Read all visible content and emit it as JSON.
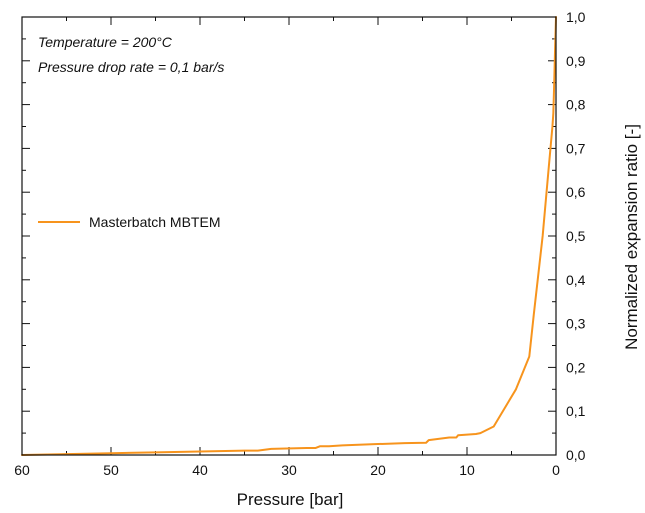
{
  "chart_data": {
    "type": "line",
    "title": "",
    "xlabel": "Pressure [bar]",
    "ylabel": "Normalized expansion ratio [-]",
    "xlim": [
      60,
      0
    ],
    "ylim": [
      0.0,
      1.0
    ],
    "x_reversed": true,
    "y_axis_side": "right",
    "grid": false,
    "legend_placement": "left-middle",
    "x_ticks": [
      {
        "value": 60,
        "label": "60"
      },
      {
        "value": 50,
        "label": "50"
      },
      {
        "value": 40,
        "label": "40"
      },
      {
        "value": 30,
        "label": "30"
      },
      {
        "value": 20,
        "label": "20"
      },
      {
        "value": 10,
        "label": "10"
      },
      {
        "value": 0,
        "label": "0"
      }
    ],
    "y_ticks": [
      {
        "value": 0.0,
        "label": "0,0"
      },
      {
        "value": 0.1,
        "label": "0,1"
      },
      {
        "value": 0.2,
        "label": "0,2"
      },
      {
        "value": 0.3,
        "label": "0,3"
      },
      {
        "value": 0.4,
        "label": "0,4"
      },
      {
        "value": 0.5,
        "label": "0,5"
      },
      {
        "value": 0.6,
        "label": "0,6"
      },
      {
        "value": 0.7,
        "label": "0,7"
      },
      {
        "value": 0.8,
        "label": "0,8"
      },
      {
        "value": 0.9,
        "label": "0,9"
      },
      {
        "value": 1.0,
        "label": "1,0"
      }
    ],
    "annotations": [
      "Temperature = 200°C",
      "Pressure drop rate = 0,1 bar/s"
    ],
    "series": [
      {
        "name": "Masterbatch MBTEM",
        "color": "#f7941d",
        "points": [
          [
            60,
            0.0
          ],
          [
            55,
            0.002
          ],
          [
            50,
            0.004
          ],
          [
            45,
            0.006
          ],
          [
            40,
            0.008
          ],
          [
            35,
            0.01
          ],
          [
            33.5,
            0.01
          ],
          [
            32,
            0.014
          ],
          [
            28,
            0.016
          ],
          [
            27,
            0.016
          ],
          [
            26.5,
            0.02
          ],
          [
            25.5,
            0.02
          ],
          [
            24,
            0.022
          ],
          [
            20,
            0.025
          ],
          [
            17,
            0.027
          ],
          [
            14.6,
            0.028
          ],
          [
            14.3,
            0.034
          ],
          [
            12,
            0.04
          ],
          [
            11.2,
            0.04
          ],
          [
            11,
            0.045
          ],
          [
            9,
            0.048
          ],
          [
            8.5,
            0.05
          ],
          [
            7,
            0.065
          ],
          [
            4.5,
            0.15
          ],
          [
            3,
            0.225
          ],
          [
            2.5,
            0.32
          ],
          [
            1.5,
            0.5
          ],
          [
            0.8,
            0.66
          ],
          [
            0.4,
            0.75
          ],
          [
            0.3,
            0.78
          ],
          [
            0.2,
            0.85
          ],
          [
            0.1,
            0.93
          ],
          [
            0.0,
            1.0
          ]
        ]
      }
    ]
  }
}
